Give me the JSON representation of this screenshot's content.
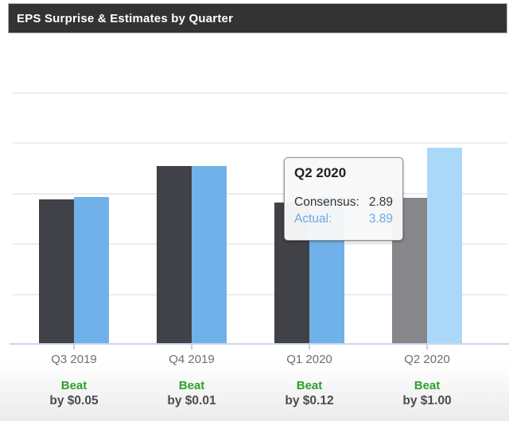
{
  "header": {
    "title": "EPS Surprise & Estimates by Quarter"
  },
  "colors": {
    "header_bg": "#333333",
    "consensus": "#414148",
    "actual": "#70b1e9",
    "consensus_highlight": "#86868b",
    "actual_highlight": "#aad8f9",
    "beat_green": "#2da02d",
    "gridline": "#ececec",
    "axis_line": "#ccd6ea"
  },
  "chart_data": {
    "type": "bar",
    "title": "EPS Surprise & Estimates by Quarter",
    "categories": [
      "Q3 2019",
      "Q4 2019",
      "Q1 2020",
      "Q2 2020"
    ],
    "series": [
      {
        "name": "Consensus",
        "values": [
          2.87,
          3.52,
          2.81,
          2.89
        ]
      },
      {
        "name": "Actual",
        "values": [
          2.92,
          3.53,
          2.93,
          3.89
        ]
      }
    ],
    "surprise": [
      {
        "result": "Beat",
        "amount": "by $0.05"
      },
      {
        "result": "Beat",
        "amount": "by $0.01"
      },
      {
        "result": "Beat",
        "amount": "by $0.12"
      },
      {
        "result": "Beat",
        "amount": "by $1.00"
      }
    ],
    "highlighted_category": "Q2 2020",
    "xlabel": "",
    "ylabel": "",
    "ylim": [
      0,
      6.2
    ],
    "gridline_values": [
      1,
      2,
      3,
      4,
      5
    ],
    "grid": true,
    "legend": false
  },
  "tooltip": {
    "title": "Q2 2020",
    "rows": [
      {
        "label": "Consensus:",
        "value": "2.89"
      },
      {
        "label": "Actual:",
        "value": "3.89"
      }
    ]
  }
}
